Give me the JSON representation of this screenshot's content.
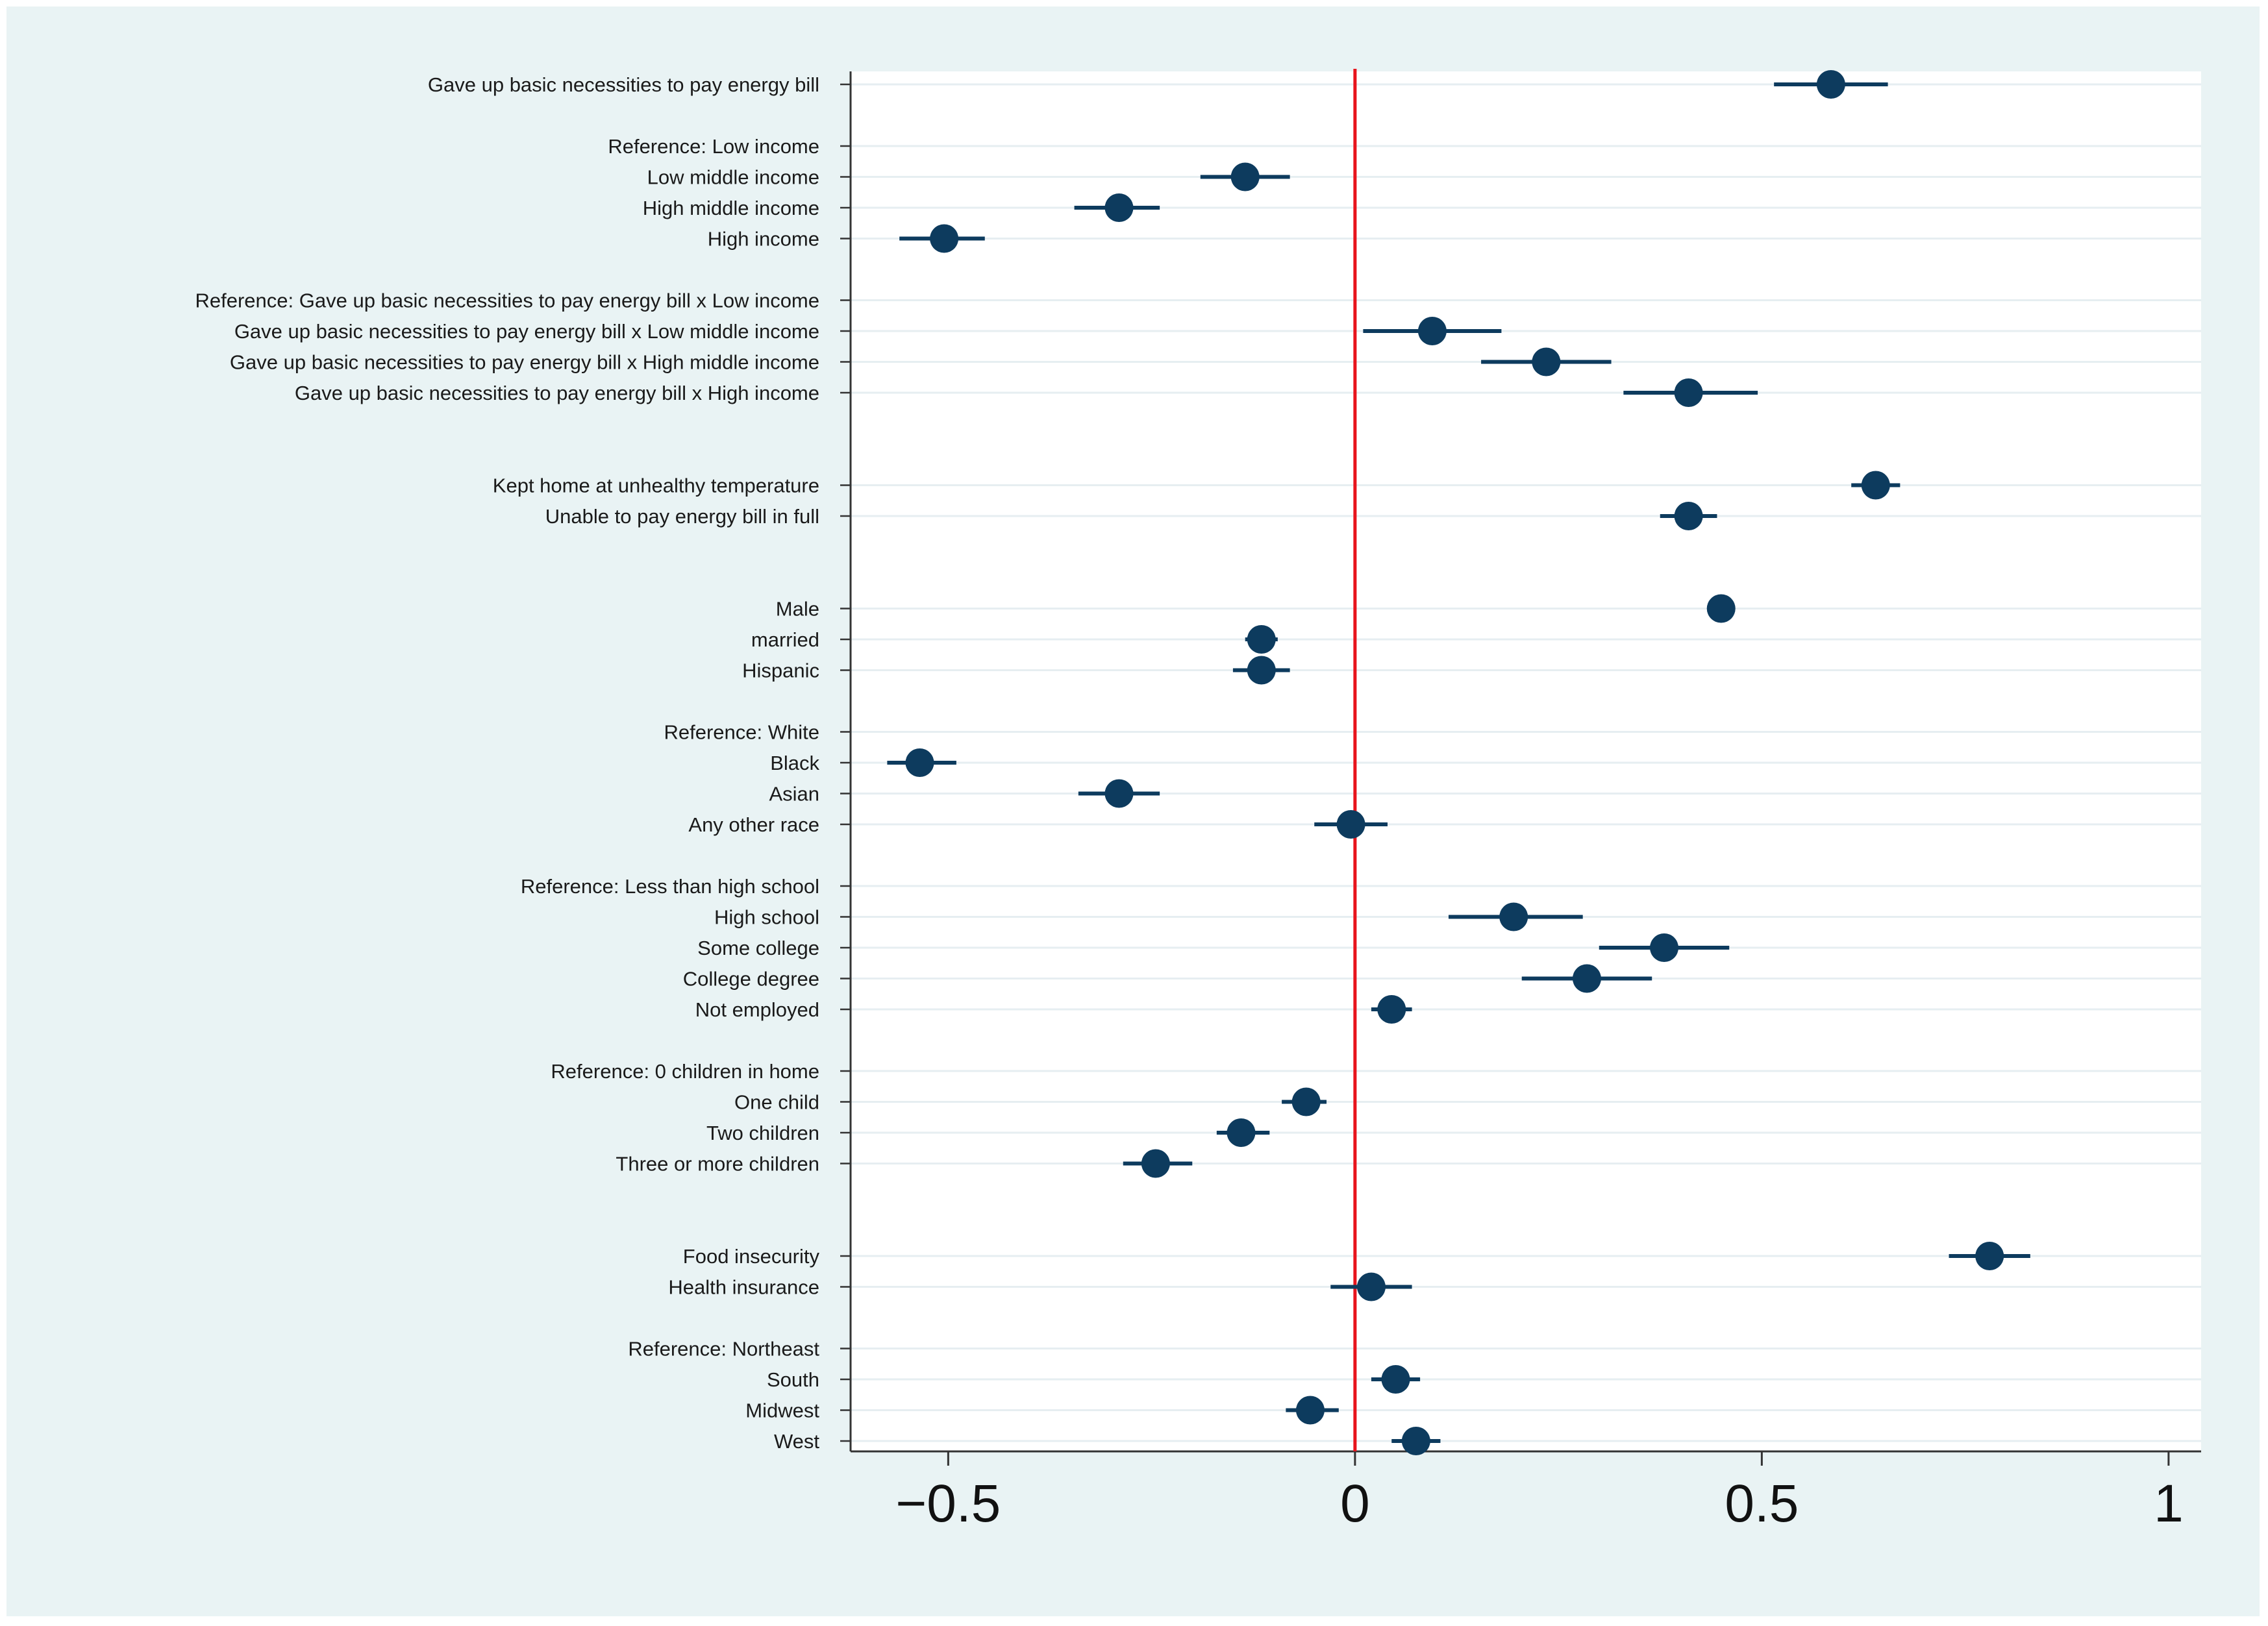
{
  "chart_data": {
    "type": "scatter",
    "subtype": "coefficient-plot",
    "title": "",
    "xlabel": "",
    "ylabel": "",
    "xlim": [
      -0.62,
      1.04
    ],
    "x_ticks": [
      {
        "value": -0.5,
        "label": "−0.5"
      },
      {
        "value": 0,
        "label": "0"
      },
      {
        "value": 0.5,
        "label": "0.5"
      },
      {
        "value": 1,
        "label": "1"
      }
    ],
    "reference_line": {
      "x": 0,
      "color": "#e8141c"
    },
    "marker_color": "#0d3b5e",
    "grid": true,
    "rows": [
      {
        "label": "Gave up basic necessities to pay energy bill",
        "estimate": 0.585,
        "lo": 0.515,
        "hi": 0.655
      },
      {
        "label": "",
        "estimate": null
      },
      {
        "label": "Reference: Low income",
        "estimate": null
      },
      {
        "label": "Low middle income",
        "estimate": -0.135,
        "lo": -0.19,
        "hi": -0.08
      },
      {
        "label": "High middle income",
        "estimate": -0.29,
        "lo": -0.345,
        "hi": -0.24
      },
      {
        "label": "High income",
        "estimate": -0.505,
        "lo": -0.56,
        "hi": -0.455
      },
      {
        "label": "",
        "estimate": null
      },
      {
        "label": "Reference: Gave up basic necessities to pay energy bill x Low income",
        "estimate": null
      },
      {
        "label": "Gave up basic necessities to pay energy bill x Low middle income",
        "estimate": 0.095,
        "lo": 0.01,
        "hi": 0.18
      },
      {
        "label": "Gave up basic necessities to pay energy bill x High middle income",
        "estimate": 0.235,
        "lo": 0.155,
        "hi": 0.315
      },
      {
        "label": "Gave up basic necessities to pay energy bill x High income",
        "estimate": 0.41,
        "lo": 0.33,
        "hi": 0.495
      },
      {
        "label": "",
        "estimate": null
      },
      {
        "label": "",
        "estimate": null
      },
      {
        "label": "Kept home at unhealthy temperature",
        "estimate": 0.64,
        "lo": 0.61,
        "hi": 0.67
      },
      {
        "label": "Unable to pay energy bill in full",
        "estimate": 0.41,
        "lo": 0.375,
        "hi": 0.445
      },
      {
        "label": "",
        "estimate": null
      },
      {
        "label": "",
        "estimate": null
      },
      {
        "label": "Male",
        "estimate": 0.45,
        "lo": 0.435,
        "hi": 0.465
      },
      {
        "label": "married",
        "estimate": -0.115,
        "lo": -0.135,
        "hi": -0.095
      },
      {
        "label": "Hispanic",
        "estimate": -0.115,
        "lo": -0.15,
        "hi": -0.08
      },
      {
        "label": "",
        "estimate": null
      },
      {
        "label": "Reference: White",
        "estimate": null
      },
      {
        "label": "Black",
        "estimate": -0.535,
        "lo": -0.575,
        "hi": -0.49
      },
      {
        "label": "Asian",
        "estimate": -0.29,
        "lo": -0.34,
        "hi": -0.24
      },
      {
        "label": "Any other race",
        "estimate": -0.005,
        "lo": -0.05,
        "hi": 0.04
      },
      {
        "label": "",
        "estimate": null
      },
      {
        "label": "Reference: Less than high school",
        "estimate": null
      },
      {
        "label": "High school",
        "estimate": 0.195,
        "lo": 0.115,
        "hi": 0.28
      },
      {
        "label": "Some college",
        "estimate": 0.38,
        "lo": 0.3,
        "hi": 0.46
      },
      {
        "label": "College degree",
        "estimate": 0.285,
        "lo": 0.205,
        "hi": 0.365
      },
      {
        "label": "Not employed",
        "estimate": 0.045,
        "lo": 0.02,
        "hi": 0.07
      },
      {
        "label": "",
        "estimate": null
      },
      {
        "label": "Reference: 0 children in home",
        "estimate": null
      },
      {
        "label": "One child",
        "estimate": -0.06,
        "lo": -0.09,
        "hi": -0.035
      },
      {
        "label": "Two children",
        "estimate": -0.14,
        "lo": -0.17,
        "hi": -0.105
      },
      {
        "label": "Three or more children",
        "estimate": -0.245,
        "lo": -0.285,
        "hi": -0.2
      },
      {
        "label": "",
        "estimate": null
      },
      {
        "label": "",
        "estimate": null
      },
      {
        "label": "Food insecurity",
        "estimate": 0.78,
        "lo": 0.73,
        "hi": 0.83
      },
      {
        "label": "Health insurance",
        "estimate": 0.02,
        "lo": -0.03,
        "hi": 0.07
      },
      {
        "label": "",
        "estimate": null
      },
      {
        "label": "Reference: Northeast",
        "estimate": null
      },
      {
        "label": "South",
        "estimate": 0.05,
        "lo": 0.02,
        "hi": 0.08
      },
      {
        "label": "Midwest",
        "estimate": -0.055,
        "lo": -0.085,
        "hi": -0.02
      },
      {
        "label": "West",
        "estimate": 0.075,
        "lo": 0.045,
        "hi": 0.105
      }
    ]
  }
}
